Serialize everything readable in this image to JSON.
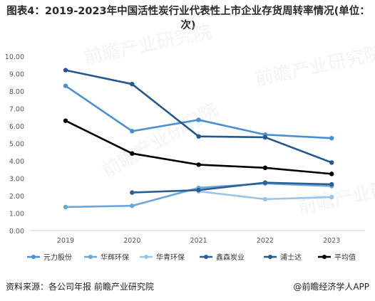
{
  "title": "图表4：2019-2023年中国活性炭行业代表性上市企业存货周转率情况(单位：次)",
  "source": "资料来源：各公司年报 前瞻产业研究院",
  "credit": "@前瞻经济学人APP",
  "watermark": "前瞻产业研究院",
  "chart_data": {
    "type": "line",
    "title": "图表4：2019-2023年中国活性炭行业代表性上市企业存货周转率情况(单位：次)",
    "xlabel": "",
    "ylabel": "",
    "x": [
      "2019",
      "2020",
      "2021",
      "2022",
      "2023"
    ],
    "ylim": [
      0,
      10
    ],
    "yticks": [
      "0.00",
      "1.00",
      "2.00",
      "3.00",
      "4.00",
      "5.00",
      "6.00",
      "7.00",
      "8.00",
      "9.00",
      "10.00"
    ],
    "grid": false,
    "legend_position": "bottom",
    "series": [
      {
        "name": "元力股份",
        "color": "#4a8fd4",
        "values": [
          8.3,
          5.7,
          6.35,
          5.5,
          5.3
        ]
      },
      {
        "name": "华辉环保",
        "color": "#6aa6db",
        "values": [
          1.35,
          1.42,
          2.45,
          2.7,
          2.55
        ]
      },
      {
        "name": "华青环保",
        "color": "#9cc3e8",
        "values": [
          null,
          null,
          2.25,
          1.8,
          1.92
        ]
      },
      {
        "name": "鑫森炭业",
        "color": "#2a5f95",
        "values": [
          null,
          2.18,
          2.32,
          2.75,
          2.65
        ]
      },
      {
        "name": "浦士达",
        "color": "#24578f",
        "values": [
          9.2,
          8.4,
          5.4,
          5.35,
          3.9
        ]
      },
      {
        "name": "平均值",
        "color": "#000000",
        "values": [
          6.3,
          4.42,
          3.78,
          3.6,
          3.25
        ]
      }
    ]
  }
}
